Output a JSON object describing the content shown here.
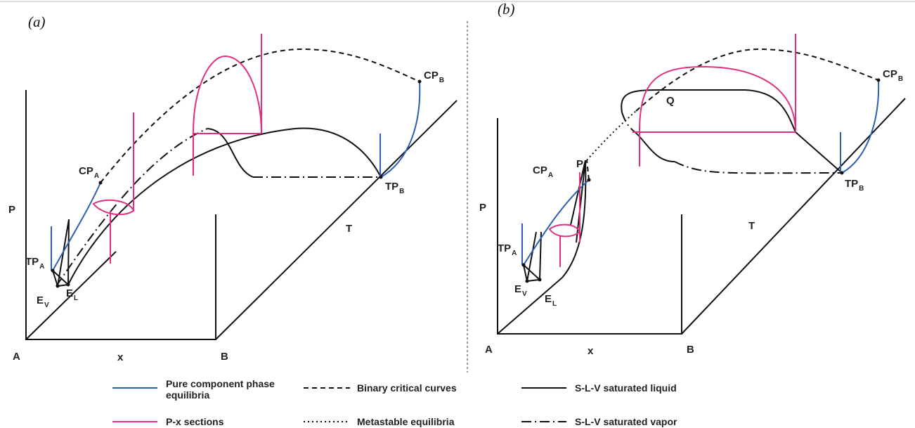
{
  "panels": [
    {
      "label": "(a)",
      "axes": {
        "p": "P",
        "a": "A",
        "x": "x",
        "b": "B",
        "t": "T"
      },
      "points": [
        {
          "main": "CP",
          "sub": "A"
        },
        {
          "main": "CP",
          "sub": "B"
        },
        {
          "main": "TP",
          "sub": "A"
        },
        {
          "main": "TP",
          "sub": "B"
        },
        {
          "main": "E",
          "sub": "V"
        },
        {
          "main": "E",
          "sub": "L"
        }
      ]
    },
    {
      "label": "(b)",
      "axes": {
        "p": "P",
        "a": "A",
        "x": "x",
        "b": "B",
        "t": "T"
      },
      "points": [
        {
          "main": "CP",
          "sub": "A"
        },
        {
          "main": "CP",
          "sub": "B"
        },
        {
          "main": "TP",
          "sub": "A"
        },
        {
          "main": "TP",
          "sub": "B"
        },
        {
          "main": "E",
          "sub": "V"
        },
        {
          "main": "E",
          "sub": "L"
        },
        {
          "main": "P"
        },
        {
          "main": "Q"
        }
      ]
    }
  ],
  "legend": [
    "Pure component phase equilibria",
    "P-x sections",
    "Binary critical curves",
    "Metastable equilibria",
    "S-L-V saturated liquid",
    "S-L-V saturated vapor"
  ]
}
